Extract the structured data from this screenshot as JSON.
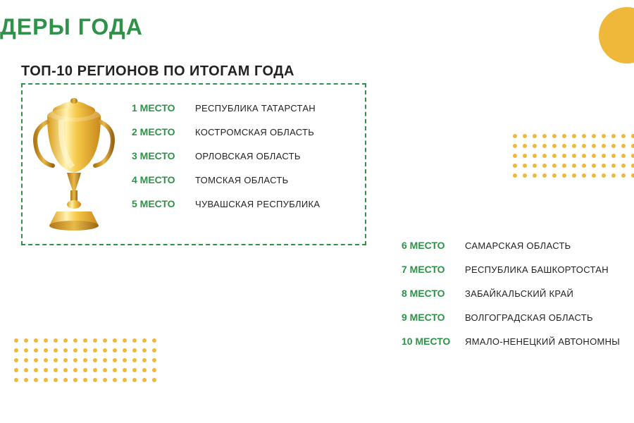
{
  "page_title": "ДЕРЫ ГОДА",
  "subtitle": "ТОП-10 РЕГИОНОВ ПО ИТОГАМ ГОДА",
  "colors": {
    "accent_green": "#2e9248",
    "gold": "#f0b83a",
    "text_dark": "#222222",
    "background": "#ffffff"
  },
  "rank_suffix": "МЕСТО",
  "top5": [
    {
      "rank": "1 МЕСТО",
      "region": "РЕСПУБЛИКА ТАТАРСТАН"
    },
    {
      "rank": "2 МЕСТО",
      "region": "КОСТРОМСКАЯ ОБЛАСТЬ"
    },
    {
      "rank": "3 МЕСТО",
      "region": "ОРЛОВСКАЯ ОБЛАСТЬ"
    },
    {
      "rank": "4 МЕСТО",
      "region": "ТОМСКАЯ ОБЛАСТЬ"
    },
    {
      "rank": "5 МЕСТО",
      "region": "ЧУВАШСКАЯ РЕСПУБЛИКА"
    }
  ],
  "bottom5": [
    {
      "rank": "6 МЕСТО",
      "region": "САМАРСКАЯ ОБЛАСТЬ"
    },
    {
      "rank": "7 МЕСТО",
      "region": "РЕСПУБЛИКА БАШКОРТОСТАН"
    },
    {
      "rank": "8 МЕСТО",
      "region": "ЗАБАЙКАЛЬСКИЙ КРАЙ"
    },
    {
      "rank": "9 МЕСТО",
      "region": "ВОЛГОГРАДСКАЯ ОБЛАСТЬ"
    },
    {
      "rank": "10 МЕСТО",
      "region": "ЯМАЛО-НЕНЕЦКИЙ АВТОНОМНЫ"
    }
  ],
  "dot_pattern": {
    "color": "#f0b83a",
    "rows": 5,
    "cols": 15,
    "dot_size": 6,
    "gap": 8
  },
  "typography": {
    "title_fontsize": 32,
    "subtitle_fontsize": 20,
    "rank_fontsize": 14,
    "region_fontsize": 13
  }
}
